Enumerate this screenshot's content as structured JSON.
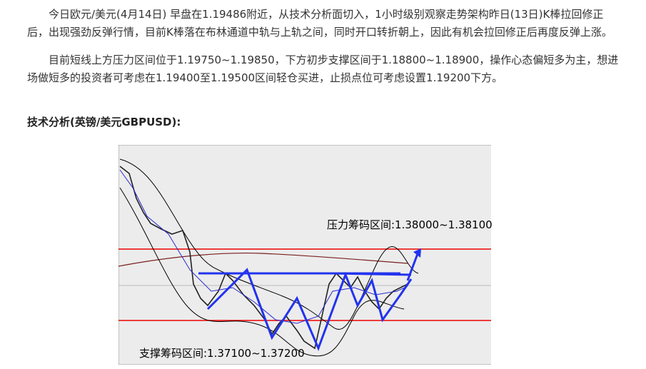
{
  "paragraphs": [
    "今日欧元/美元(4月14日) 早盘在1.19486附近，从技术分析面切入，1小时级别观察走势架构昨日(13日)K棒拉回修正后，出现强劲反弹行情，目前K棒落在布林通道中轨与上轨之间，同时开口转折朝上，因此有机会拉回修正后再度反弹上涨。",
    "目前短线上方压力区间位于1.19750~1.19850，下方初步支撑区间于1.18800~1.18900，操作心态偏短多为主，想进场做短多的投资者可考虑在1.19400至1.19500区间轻仓买进，止损点位可考虑设置1.19200下方。"
  ],
  "heading": "技术分析(英镑/美元GBPUSD):",
  "figure": {
    "resistance_label": "压力筹码区间:1.38000~1.38100",
    "support_label": "支撑筹码区间:1.37100~1.37200"
  }
}
